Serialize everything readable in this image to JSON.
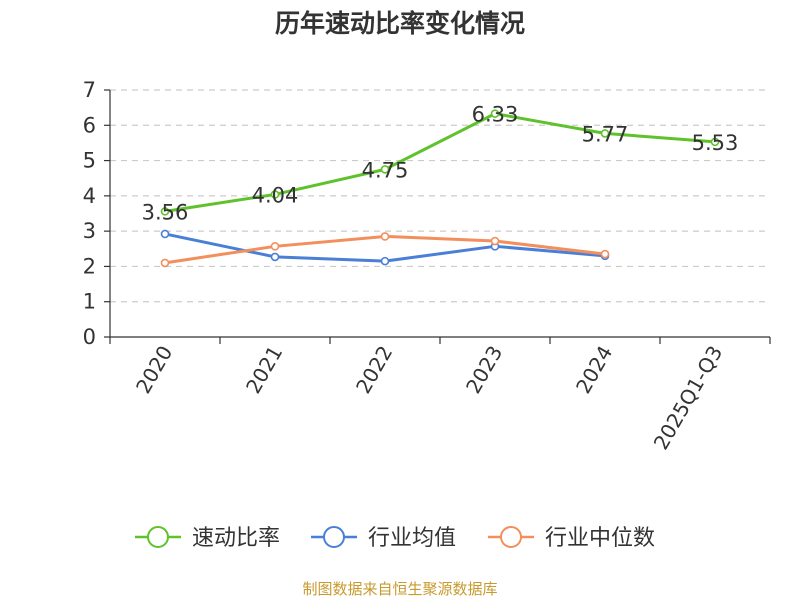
{
  "chart_data": {
    "type": "line",
    "title": "历年速动比率变化情况",
    "categories": [
      "2020",
      "2021",
      "2022",
      "2023",
      "2024",
      "2025Q1-Q3"
    ],
    "ylim": [
      0,
      7
    ],
    "yticks": [
      0,
      1,
      2,
      3,
      4,
      5,
      6,
      7
    ],
    "grid": true,
    "legend_position": "bottom",
    "series": [
      {
        "name": "速动比率",
        "color": "#5fc22c",
        "values": [
          3.56,
          4.04,
          4.75,
          6.33,
          5.77,
          5.53
        ],
        "labels": [
          "3.56",
          "4.04",
          "4.75",
          "6.33",
          "5.77",
          "5.53"
        ]
      },
      {
        "name": "行业均值",
        "color": "#4a7fd7",
        "values": [
          2.92,
          2.27,
          2.15,
          2.57,
          2.3,
          null
        ]
      },
      {
        "name": "行业中位数",
        "color": "#f28f5c",
        "values": [
          2.1,
          2.57,
          2.85,
          2.72,
          2.35,
          null
        ]
      }
    ]
  },
  "source": "制图数据来自恒生聚源数据库"
}
